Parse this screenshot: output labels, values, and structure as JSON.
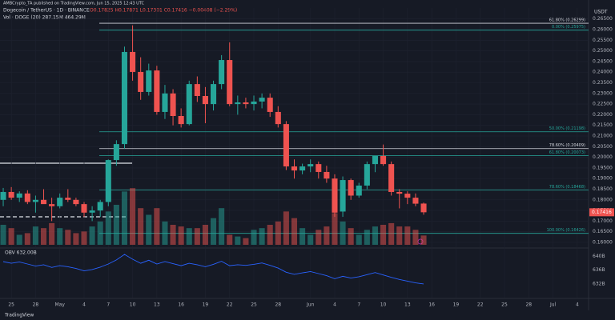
{
  "chart_data": {
    "type": "candlestick",
    "publisher": "AMBCrypto_TA published on TradingView.com, Jun 15, 2025 12:43 UTC",
    "title": "Dogecoin / TetherUS · 1D · BINANCE",
    "ohlc_header": "O0.17825 H0.17871 L0.17301 C0.17416 −0.00408 (−2.29%)",
    "volume_header": "Vol · DOGE (20)  287.15M  464.29M",
    "currency": "USDT",
    "footer": "TradingView",
    "up_color": "#26a69a",
    "down_color": "#ef5350",
    "last_price": 0.17416,
    "candles": [
      [
        0.18,
        0.1856,
        0.177,
        0.1837
      ],
      [
        0.1837,
        0.186,
        0.18,
        0.181
      ],
      [
        0.181,
        0.184,
        0.179,
        0.183
      ],
      [
        0.183,
        0.1845,
        0.178,
        0.179
      ],
      [
        0.179,
        0.182,
        0.174,
        0.18
      ],
      [
        0.18,
        0.185,
        0.179,
        0.178
      ],
      [
        0.178,
        0.181,
        0.17,
        0.177
      ],
      [
        0.177,
        0.183,
        0.176,
        0.181
      ],
      [
        0.181,
        0.185,
        0.179,
        0.18
      ],
      [
        0.18,
        0.181,
        0.177,
        0.178
      ],
      [
        0.178,
        0.179,
        0.172,
        0.174
      ],
      [
        0.174,
        0.177,
        0.17,
        0.175
      ],
      [
        0.175,
        0.18,
        0.172,
        0.179
      ],
      [
        0.179,
        0.199,
        0.177,
        0.1987
      ],
      [
        0.1987,
        0.208,
        0.196,
        0.2062
      ],
      [
        0.2062,
        0.252,
        0.204,
        0.2495
      ],
      [
        0.2495,
        0.262,
        0.236,
        0.2401
      ],
      [
        0.2401,
        0.247,
        0.227,
        0.2307
      ],
      [
        0.2307,
        0.244,
        0.229,
        0.2408
      ],
      [
        0.2408,
        0.243,
        0.22,
        0.2213
      ],
      [
        0.2213,
        0.234,
        0.218,
        0.23
      ],
      [
        0.23,
        0.232,
        0.215,
        0.2194
      ],
      [
        0.2194,
        0.223,
        0.214,
        0.2156
      ],
      [
        0.2156,
        0.236,
        0.215,
        0.2344
      ],
      [
        0.2344,
        0.238,
        0.226,
        0.2288
      ],
      [
        0.2288,
        0.233,
        0.216,
        0.225
      ],
      [
        0.225,
        0.236,
        0.222,
        0.2344
      ],
      [
        0.2344,
        0.248,
        0.232,
        0.2457
      ],
      [
        0.2457,
        0.254,
        0.224,
        0.225
      ],
      [
        0.225,
        0.229,
        0.22,
        0.2258
      ],
      [
        0.2258,
        0.228,
        0.223,
        0.225
      ],
      [
        0.225,
        0.229,
        0.222,
        0.2262
      ],
      [
        0.2262,
        0.23,
        0.223,
        0.228
      ],
      [
        0.228,
        0.23,
        0.219,
        0.2213
      ],
      [
        0.2213,
        0.224,
        0.214,
        0.2156
      ],
      [
        0.2156,
        0.217,
        0.194,
        0.1957
      ],
      [
        0.1957,
        0.199,
        0.19,
        0.1938
      ],
      [
        0.1938,
        0.197,
        0.192,
        0.1957
      ],
      [
        0.1957,
        0.199,
        0.193,
        0.1968
      ],
      [
        0.1968,
        0.198,
        0.19,
        0.1931
      ],
      [
        0.1931,
        0.196,
        0.188,
        0.19
      ],
      [
        0.19,
        0.192,
        0.172,
        0.174
      ],
      [
        0.1745,
        0.191,
        0.172,
        0.1893
      ],
      [
        0.1893,
        0.19,
        0.18,
        0.182
      ],
      [
        0.182,
        0.188,
        0.181,
        0.1867
      ],
      [
        0.1867,
        0.198,
        0.185,
        0.1968
      ],
      [
        0.1968,
        0.2,
        0.193,
        0.2006
      ],
      [
        0.2006,
        0.206,
        0.196,
        0.1968
      ],
      [
        0.1968,
        0.198,
        0.182,
        0.1837
      ],
      [
        0.1837,
        0.185,
        0.176,
        0.1829
      ],
      [
        0.1829,
        0.184,
        0.178,
        0.181
      ],
      [
        0.181,
        0.183,
        0.177,
        0.1782
      ],
      [
        0.17825,
        0.17871,
        0.17301,
        0.17416
      ]
    ],
    "volume": [
      600,
      500,
      300,
      350,
      550,
      500,
      650,
      500,
      450,
      350,
      400,
      550,
      700,
      1000,
      1200,
      1600,
      1700,
      1100,
      900,
      1100,
      700,
      600,
      550,
      500,
      500,
      600,
      800,
      1100,
      300,
      250,
      200,
      450,
      500,
      600,
      700,
      1000,
      800,
      500,
      300,
      450,
      550,
      950,
      700,
      500,
      300,
      450,
      550,
      600,
      650,
      550,
      550,
      450,
      280
    ],
    "volume_ylim": [
      0,
      1800
    ],
    "obv_label": "OBV 632.00B",
    "obv": [
      638.5,
      638.0,
      638.4,
      637.8,
      637.2,
      637.6,
      636.8,
      637.3,
      637.0,
      636.5,
      635.8,
      636.2,
      636.9,
      637.8,
      639.0,
      640.6,
      639.2,
      638.0,
      638.9,
      637.8,
      638.5,
      637.9,
      637.3,
      638.0,
      637.6,
      637.0,
      637.7,
      638.6,
      637.3,
      637.6,
      637.4,
      637.7,
      638.1,
      637.4,
      636.6,
      635.4,
      634.8,
      635.2,
      635.6,
      635.0,
      634.4,
      633.5,
      634.2,
      633.7,
      634.1,
      634.7,
      635.3,
      634.6,
      633.9,
      633.3,
      632.8,
      632.3,
      632.0
    ],
    "obv_color": "#2962ff",
    "obv_ylim": [
      628,
      642
    ],
    "obv_ticks": [
      {
        "value": 640,
        "label": "640B"
      },
      {
        "value": 636,
        "label": "636B"
      },
      {
        "value": 632,
        "label": "632B"
      }
    ],
    "xlim": [
      -0.4,
      72.4
    ],
    "xticks": [
      {
        "value": 1,
        "label": "25"
      },
      {
        "value": 4,
        "label": "28"
      },
      {
        "value": 7,
        "label": "May"
      },
      {
        "value": 10,
        "label": "4"
      },
      {
        "value": 13,
        "label": "7"
      },
      {
        "value": 16,
        "label": "10"
      },
      {
        "value": 19,
        "label": "13"
      },
      {
        "value": 22,
        "label": "16"
      },
      {
        "value": 25,
        "label": "19"
      },
      {
        "value": 28,
        "label": "22"
      },
      {
        "value": 31,
        "label": "25"
      },
      {
        "value": 34,
        "label": "28"
      },
      {
        "value": 38,
        "label": "Jun"
      },
      {
        "value": 41,
        "label": "4"
      },
      {
        "value": 44,
        "label": "7"
      },
      {
        "value": 47,
        "label": "10"
      },
      {
        "value": 50,
        "label": "13"
      },
      {
        "value": 53,
        "label": "16"
      },
      {
        "value": 56,
        "label": "19"
      },
      {
        "value": 59,
        "label": "22"
      },
      {
        "value": 62,
        "label": "25"
      },
      {
        "value": 65,
        "label": "28"
      },
      {
        "value": 68,
        "label": "Jul"
      },
      {
        "value": 71,
        "label": "4"
      }
    ],
    "ylim": [
      0.15737,
      0.27015
    ],
    "yticks": [
      {
        "value": 0.16,
        "label": "0.16000"
      },
      {
        "value": 0.165,
        "label": "0.16500"
      },
      {
        "value": 0.17,
        "label": "0.17000"
      },
      {
        "value": 0.175,
        "label": "0.17500"
      },
      {
        "value": 0.18,
        "label": "0.18000"
      },
      {
        "value": 0.185,
        "label": "0.18500"
      },
      {
        "value": 0.19,
        "label": "0.19000"
      },
      {
        "value": 0.195,
        "label": "0.19500"
      },
      {
        "value": 0.2,
        "label": "0.20000"
      },
      {
        "value": 0.205,
        "label": "0.20500"
      },
      {
        "value": 0.21,
        "label": "0.21000"
      },
      {
        "value": 0.215,
        "label": "0.21500"
      },
      {
        "value": 0.22,
        "label": "0.22000"
      },
      {
        "value": 0.225,
        "label": "0.22500"
      },
      {
        "value": 0.23,
        "label": "0.23000"
      },
      {
        "value": 0.235,
        "label": "0.23500"
      },
      {
        "value": 0.24,
        "label": "0.24000"
      },
      {
        "value": 0.245,
        "label": "0.24500"
      },
      {
        "value": 0.25,
        "label": "0.25000"
      },
      {
        "value": 0.255,
        "label": "0.25500"
      },
      {
        "value": 0.26,
        "label": "0.26000"
      },
      {
        "value": 0.265,
        "label": "0.26500"
      }
    ],
    "levels": [
      {
        "value": 0.26299,
        "label": "61.80% (0.26299)",
        "color": "#d1d4dc"
      },
      {
        "value": 0.25975,
        "label": "0.00% (0.25975)",
        "color": "#26a69a"
      },
      {
        "value": 0.21198,
        "label": "50.00% (0.21198)",
        "color": "#26a69a"
      },
      {
        "value": 0.20409,
        "label": "78.60% (0.20409)",
        "color": "#d1d4dc"
      },
      {
        "value": 0.20073,
        "label": "61.80% (0.20073)",
        "color": "#26a69a"
      },
      {
        "value": 0.18468,
        "label": "78.60% (0.18468)",
        "color": "#26a69a"
      },
      {
        "value": 0.16426,
        "label": "100.00% (0.16426)",
        "color": "#26a69a"
      }
    ]
  }
}
